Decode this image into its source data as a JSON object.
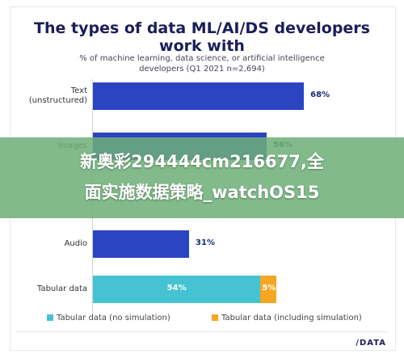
{
  "chart_data": {
    "type": "bar",
    "title": "The types of data ML/AI/DS developers work with",
    "title_line1": "The types of data ML/AI/DS developers",
    "title_line2": "work with",
    "subtitle_line1": "% of machine learning, data science, or artificial intelligence",
    "subtitle_line2": "developers (Q1 2021 n=2,694)",
    "categories": [
      "Text\n(unstructured)",
      "Images",
      "Audio",
      "Tabular data"
    ],
    "category_lines": [
      [
        "Text",
        "(unstructured)"
      ],
      [
        "Images"
      ],
      [
        "Audio"
      ],
      [
        "Tabular data"
      ]
    ],
    "series": [
      {
        "name": "Tabular data (no simulation)",
        "values": [
          68,
          56,
          31,
          54
        ]
      },
      {
        "name": "Tabular data (including simulation)",
        "values": [
          null,
          null,
          null,
          5
        ]
      }
    ],
    "value_labels": [
      "68%",
      "56%",
      "31%",
      "54%",
      "5%"
    ],
    "xlim": [
      0,
      100
    ],
    "colors": {
      "main": "#2b44c2",
      "tabular": "#45c3d2",
      "simulation": "#f5a623",
      "title": "#1a1f5a"
    },
    "legend": {
      "placement": "bottom",
      "items": [
        {
          "label": "Tabular data (no simulation)",
          "color": "#45c3d2"
        },
        {
          "label": "Tabular data (including simulation)",
          "color": "#f5a623"
        }
      ]
    }
  },
  "overlay": {
    "line1": "新奥彩294444cm216677,全",
    "line2": "面实施数据策略_watchOS15"
  },
  "footer": {
    "logo": "/DATA"
  }
}
